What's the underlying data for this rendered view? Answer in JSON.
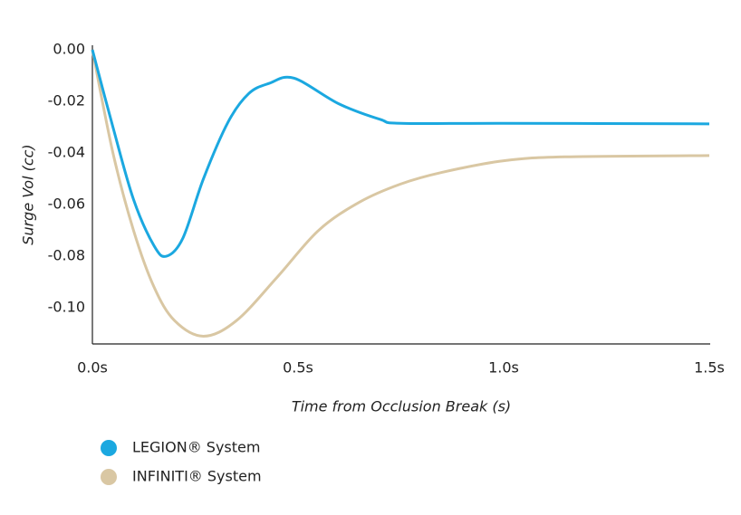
{
  "chart_data": {
    "type": "line",
    "x_label": "Time from Occlusion Break (s)",
    "y_label": "Surge Vol (cc)",
    "xlim": [
      0,
      1.5
    ],
    "ylim": [
      -0.114,
      0
    ],
    "xticks": [
      {
        "value": 0,
        "label": "0.0s"
      },
      {
        "value": 0.5,
        "label": "0.5s"
      },
      {
        "value": 1.0,
        "label": "1.0s"
      },
      {
        "value": 1.5,
        "label": "1.5s"
      }
    ],
    "yticks": [
      {
        "value": 0,
        "label": "0.00"
      },
      {
        "value": -0.02,
        "label": "-0.02"
      },
      {
        "value": -0.04,
        "label": "-0.04"
      },
      {
        "value": -0.06,
        "label": "-0.06"
      },
      {
        "value": -0.08,
        "label": "-0.08"
      },
      {
        "value": -0.1,
        "label": "-0.10"
      }
    ],
    "series": [
      {
        "name": "LEGION® System",
        "color": "#1ba8e0",
        "x": [
          0,
          0.05,
          0.1,
          0.15,
          0.18,
          0.22,
          0.27,
          0.33,
          0.38,
          0.43,
          0.49,
          0.6,
          0.7,
          0.75,
          1.0,
          1.5
        ],
        "values": [
          0,
          -0.03,
          -0.058,
          -0.076,
          -0.08,
          -0.073,
          -0.05,
          -0.028,
          -0.017,
          -0.013,
          -0.011,
          -0.021,
          -0.027,
          -0.0285,
          -0.0285,
          -0.0287
        ]
      },
      {
        "name": "INFINITI® System",
        "color": "#d9c7a3",
        "x": [
          0,
          0.05,
          0.1,
          0.15,
          0.2,
          0.27,
          0.35,
          0.45,
          0.55,
          0.65,
          0.75,
          0.85,
          1.0,
          1.15,
          1.5
        ],
        "values": [
          0,
          -0.04,
          -0.07,
          -0.092,
          -0.105,
          -0.111,
          -0.105,
          -0.088,
          -0.07,
          -0.059,
          -0.052,
          -0.0475,
          -0.043,
          -0.0415,
          -0.041
        ]
      }
    ]
  }
}
